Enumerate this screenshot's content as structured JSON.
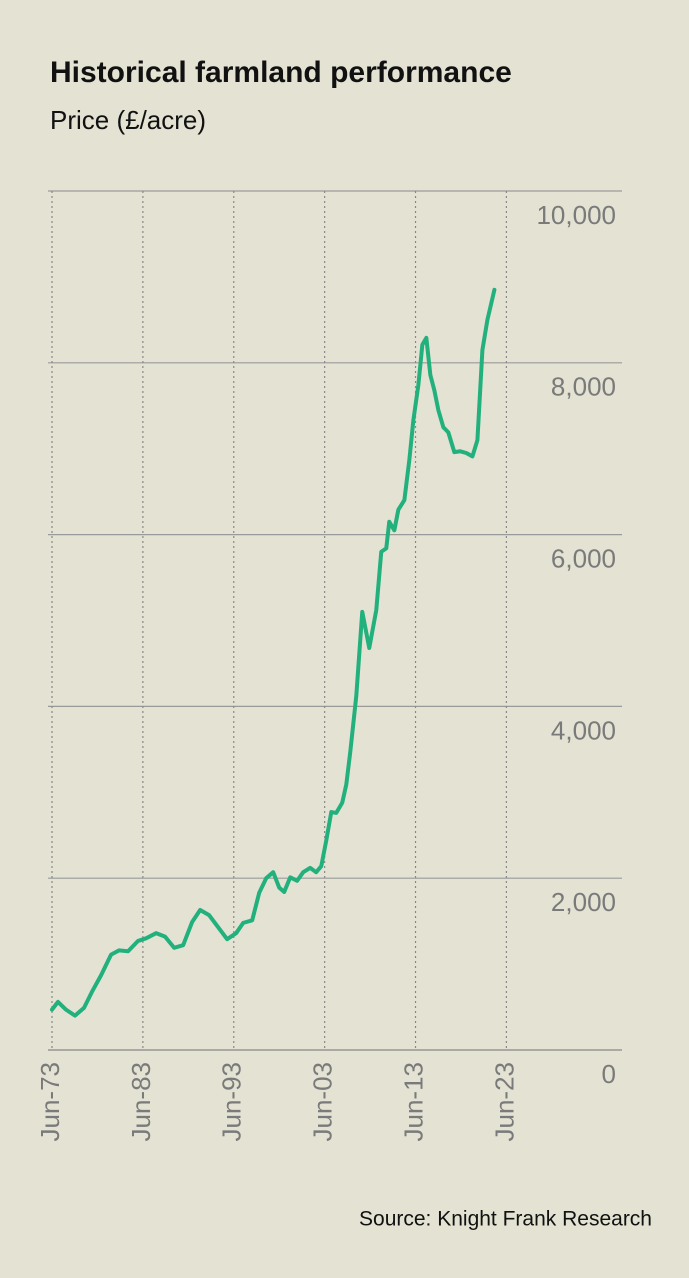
{
  "chart_data": {
    "type": "line",
    "title": "Historical farmland performance",
    "subtitle": "Price (£/acre)",
    "source": "Source: Knight Frank Research",
    "color": "#22b07d",
    "x": [
      1973.5,
      1974.16,
      1975.04,
      1976.03,
      1977.02,
      1977.91,
      1978.9,
      1980.0,
      1980.88,
      1981.87,
      1982.97,
      1983.85,
      1984.95,
      1985.94,
      1986.94,
      1987.93,
      1988.92,
      1989.8,
      1990.79,
      1991.78,
      1992.77,
      1993.76,
      1994.54,
      1995.53,
      1996.3,
      1997.07,
      1997.84,
      1998.5,
      1999.05,
      1999.71,
      2000.48,
      2001.14,
      2001.91,
      2002.57,
      2003.13,
      2003.68,
      2004.23,
      2004.78,
      2005.44,
      2005.88,
      2006.32,
      2006.98,
      2007.64,
      2008.41,
      2009.18,
      2009.73,
      2010.28,
      2010.61,
      2011.17,
      2011.61,
      2012.27,
      2012.82,
      2013.26,
      2013.81,
      2014.25,
      2014.69,
      2015.13,
      2015.57,
      2016.01,
      2016.56,
      2017.11,
      2017.77,
      2018.43,
      2019.09,
      2019.76,
      2020.31,
      2020.86,
      2021.41,
      2022.18
    ],
    "values": [
      470,
      560,
      470,
      400,
      490,
      680,
      870,
      1110,
      1160,
      1150,
      1270,
      1300,
      1360,
      1320,
      1190,
      1220,
      1490,
      1630,
      1570,
      1430,
      1290,
      1360,
      1480,
      1510,
      1830,
      2000,
      2070,
      1890,
      1840,
      2010,
      1970,
      2070,
      2120,
      2070,
      2140,
      2440,
      2770,
      2760,
      2880,
      3090,
      3470,
      4120,
      5100,
      4680,
      5120,
      5800,
      5840,
      6150,
      6050,
      6290,
      6400,
      6870,
      7330,
      7740,
      8210,
      8290,
      7860,
      7680,
      7450,
      7250,
      7190,
      6960,
      6970,
      6950,
      6910,
      7100,
      8150,
      8500,
      8850
    ],
    "xlim": [
      1973.5,
      2036
    ],
    "xticks": [
      {
        "value": 1973.5,
        "label": "Jun-73"
      },
      {
        "value": 1983.5,
        "label": "Jun-83"
      },
      {
        "value": 1993.5,
        "label": "Jun-93"
      },
      {
        "value": 2003.5,
        "label": "Jun-03"
      },
      {
        "value": 2013.5,
        "label": "Jun-13"
      },
      {
        "value": 2023.5,
        "label": "Jun-23"
      }
    ],
    "ylim": [
      0,
      10000
    ],
    "yticks": [
      0,
      {
        "value": 2000,
        "label": "2,000"
      },
      {
        "value": 4000,
        "label": "4,000"
      },
      {
        "value": 6000,
        "label": "6,000"
      },
      {
        "value": 8000,
        "label": "8,000"
      },
      {
        "value": 10000,
        "label": "10,000"
      }
    ],
    "grid": true
  }
}
